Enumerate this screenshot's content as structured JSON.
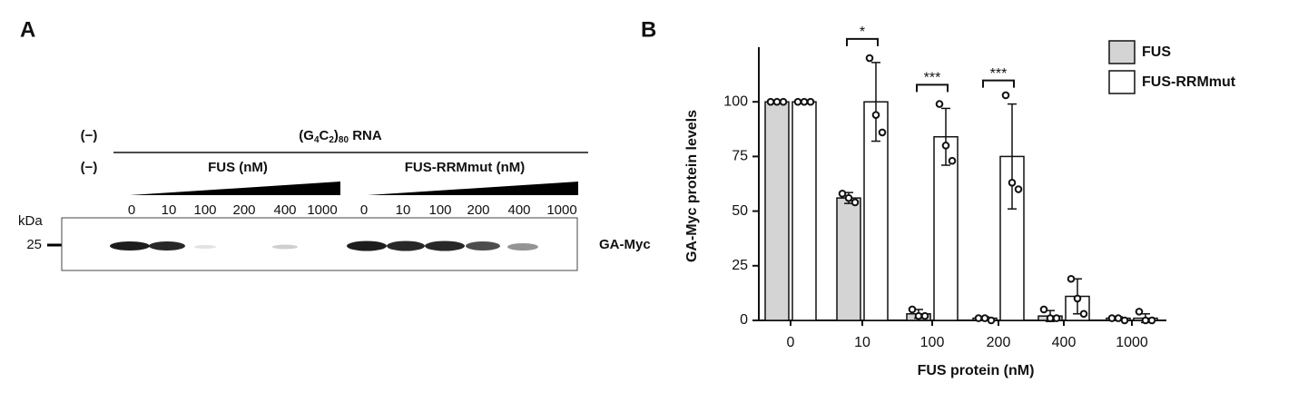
{
  "panel_a": {
    "letter": "A",
    "neg_1": "(−)",
    "neg_2": "(−)",
    "rna_label": [
      "(G",
      "4",
      "C",
      "2",
      ")",
      "80",
      " RNA"
    ],
    "group_1": "FUS (nM)",
    "group_2": "FUS-RRMmut (nM)",
    "lanes_1": [
      "0",
      "10",
      "100",
      "200",
      "400",
      "1000"
    ],
    "lanes_2": [
      "0",
      "10",
      "100",
      "200",
      "400",
      "1000"
    ],
    "kda": "kDa",
    "marker": "25",
    "band_label": "GA-Myc"
  },
  "chart_data": {
    "type": "bar",
    "letter": "B",
    "x_label": "FUS protein (nM)",
    "y_label": "GA-Myc protein levels",
    "categories": [
      "0",
      "10",
      "100",
      "200",
      "400",
      "1000"
    ],
    "series": [
      {
        "name": "FUS",
        "color": "#d4d4d4",
        "values": [
          100,
          56,
          3,
          1,
          2,
          1
        ],
        "errors": [
          0,
          2.5,
          2,
          0.6,
          2.5,
          0.6
        ],
        "points": [
          [
            100,
            100,
            100
          ],
          [
            58,
            56,
            54
          ],
          [
            5,
            2,
            2
          ],
          [
            1,
            1,
            0
          ],
          [
            5,
            1,
            1
          ],
          [
            1,
            1,
            0
          ]
        ]
      },
      {
        "name": "FUS-RRMmut",
        "color": "#ffffff",
        "values": [
          100,
          100,
          84,
          75,
          11,
          1
        ],
        "errors": [
          0,
          18,
          13,
          24,
          8,
          2
        ],
        "points": [
          [
            100,
            100,
            100
          ],
          [
            120,
            94,
            86
          ],
          [
            99,
            80,
            73
          ],
          [
            103,
            63,
            60
          ],
          [
            19,
            10,
            3
          ],
          [
            4,
            0,
            0
          ]
        ]
      }
    ],
    "significance_labels": [
      null,
      "*",
      "***",
      "***",
      null,
      null
    ],
    "ylim": [
      0,
      125
    ],
    "yticks": [
      0,
      25,
      50,
      75,
      100
    ],
    "legend": "top-right"
  }
}
